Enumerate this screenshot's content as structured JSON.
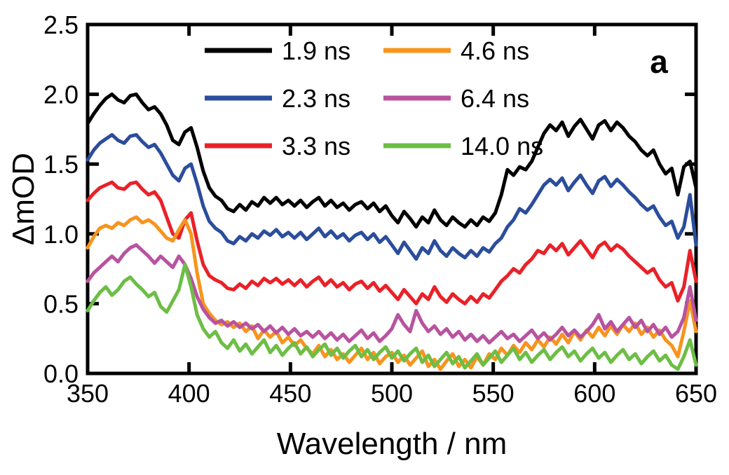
{
  "panel_label": "a",
  "axes": {
    "x": {
      "title": "Wavelength / nm",
      "range": [
        350,
        650
      ],
      "ticks": [
        350,
        400,
        450,
        500,
        550,
        600,
        650
      ]
    },
    "y": {
      "title": "ΔmOD",
      "range": [
        0,
        2.5
      ],
      "ticks": [
        "0.0",
        "0.5",
        "1.0",
        "1.5",
        "2.0",
        "2.5"
      ]
    }
  },
  "legend": {
    "position": "top-center",
    "columns": 2
  },
  "chart_data": {
    "type": "line",
    "title": "",
    "xlabel": "Wavelength / nm",
    "ylabel": "ΔmOD",
    "xlim": [
      350,
      650
    ],
    "ylim": [
      0,
      2.5
    ],
    "grid": false,
    "x": [
      350,
      353,
      356,
      359,
      362,
      365,
      368,
      371,
      374,
      377,
      380,
      383,
      386,
      389,
      392,
      395,
      398,
      401,
      404,
      407,
      410,
      413,
      416,
      419,
      422,
      425,
      428,
      431,
      434,
      437,
      440,
      443,
      446,
      449,
      452,
      455,
      458,
      461,
      464,
      467,
      470,
      473,
      476,
      479,
      482,
      485,
      488,
      491,
      494,
      497,
      500,
      503,
      506,
      509,
      512,
      515,
      518,
      521,
      524,
      527,
      530,
      533,
      536,
      539,
      542,
      545,
      548,
      551,
      554,
      557,
      560,
      563,
      566,
      569,
      572,
      575,
      578,
      581,
      584,
      587,
      590,
      593,
      596,
      599,
      602,
      605,
      608,
      611,
      614,
      617,
      620,
      623,
      626,
      629,
      632,
      635,
      638,
      641,
      644,
      647,
      650
    ],
    "series": [
      {
        "name": "1.9 ns",
        "color": "#000000",
        "values": [
          1.79,
          1.86,
          1.92,
          1.97,
          2.0,
          1.96,
          1.94,
          1.99,
          2.0,
          1.94,
          1.89,
          1.91,
          1.86,
          1.78,
          1.67,
          1.64,
          1.73,
          1.76,
          1.62,
          1.45,
          1.33,
          1.27,
          1.24,
          1.18,
          1.16,
          1.21,
          1.17,
          1.23,
          1.2,
          1.26,
          1.22,
          1.26,
          1.21,
          1.24,
          1.2,
          1.24,
          1.19,
          1.23,
          1.26,
          1.2,
          1.24,
          1.19,
          1.22,
          1.17,
          1.21,
          1.23,
          1.18,
          1.22,
          1.16,
          1.2,
          1.13,
          1.08,
          1.16,
          1.11,
          1.05,
          1.12,
          1.08,
          1.17,
          1.1,
          1.06,
          1.12,
          1.08,
          1.05,
          1.1,
          1.06,
          1.12,
          1.09,
          1.15,
          1.28,
          1.46,
          1.42,
          1.48,
          1.46,
          1.52,
          1.62,
          1.72,
          1.78,
          1.74,
          1.8,
          1.7,
          1.77,
          1.82,
          1.75,
          1.68,
          1.78,
          1.81,
          1.74,
          1.8,
          1.76,
          1.7,
          1.66,
          1.6,
          1.56,
          1.6,
          1.5,
          1.43,
          1.47,
          1.28,
          1.48,
          1.52,
          1.33
        ]
      },
      {
        "name": "2.3 ns",
        "color": "#2b4d9c",
        "values": [
          1.53,
          1.6,
          1.65,
          1.68,
          1.71,
          1.67,
          1.65,
          1.7,
          1.71,
          1.66,
          1.62,
          1.64,
          1.58,
          1.5,
          1.42,
          1.38,
          1.47,
          1.5,
          1.36,
          1.2,
          1.09,
          1.04,
          1.01,
          0.95,
          0.93,
          0.98,
          0.95,
          1.0,
          0.97,
          1.02,
          0.99,
          1.03,
          0.98,
          1.01,
          0.97,
          1.01,
          0.96,
          1.0,
          1.04,
          0.98,
          1.02,
          0.97,
          1.0,
          0.95,
          0.99,
          1.01,
          0.96,
          1.0,
          0.94,
          0.98,
          0.92,
          0.86,
          0.94,
          0.88,
          0.82,
          0.9,
          0.86,
          0.95,
          0.88,
          0.84,
          0.9,
          0.86,
          0.83,
          0.88,
          0.84,
          0.9,
          0.87,
          0.93,
          0.97,
          1.05,
          1.1,
          1.18,
          1.15,
          1.21,
          1.28,
          1.35,
          1.39,
          1.35,
          1.4,
          1.31,
          1.37,
          1.42,
          1.35,
          1.29,
          1.38,
          1.41,
          1.34,
          1.39,
          1.35,
          1.3,
          1.26,
          1.21,
          1.17,
          1.2,
          1.12,
          1.06,
          1.09,
          0.97,
          1.05,
          1.28,
          0.92
        ]
      },
      {
        "name": "3.3 ns",
        "color": "#ea2128",
        "values": [
          1.24,
          1.29,
          1.33,
          1.35,
          1.37,
          1.33,
          1.32,
          1.36,
          1.37,
          1.32,
          1.28,
          1.3,
          1.24,
          1.12,
          1.0,
          0.97,
          1.1,
          1.15,
          0.95,
          0.78,
          0.7,
          0.67,
          0.65,
          0.61,
          0.6,
          0.64,
          0.61,
          0.66,
          0.63,
          0.68,
          0.65,
          0.68,
          0.64,
          0.67,
          0.63,
          0.67,
          0.62,
          0.66,
          0.69,
          0.63,
          0.67,
          0.62,
          0.65,
          0.6,
          0.64,
          0.66,
          0.61,
          0.65,
          0.59,
          0.63,
          0.58,
          0.53,
          0.6,
          0.55,
          0.5,
          0.57,
          0.53,
          0.62,
          0.55,
          0.51,
          0.57,
          0.53,
          0.5,
          0.55,
          0.51,
          0.57,
          0.54,
          0.6,
          0.66,
          0.7,
          0.75,
          0.72,
          0.78,
          0.82,
          0.88,
          0.86,
          0.92,
          0.88,
          0.93,
          0.85,
          0.9,
          0.95,
          0.89,
          0.83,
          0.91,
          0.94,
          0.88,
          0.92,
          0.89,
          0.84,
          0.8,
          0.76,
          0.72,
          0.75,
          0.67,
          0.62,
          0.65,
          0.52,
          0.62,
          0.88,
          0.66
        ]
      },
      {
        "name": "4.6 ns",
        "color": "#f7941e",
        "values": [
          0.9,
          0.98,
          1.04,
          1.06,
          1.04,
          1.08,
          1.06,
          1.1,
          1.12,
          1.08,
          1.1,
          1.07,
          1.02,
          0.97,
          0.95,
          1.03,
          1.1,
          1.0,
          0.72,
          0.5,
          0.43,
          0.38,
          0.35,
          0.37,
          0.33,
          0.36,
          0.3,
          0.34,
          0.25,
          0.31,
          0.26,
          0.3,
          0.22,
          0.26,
          0.2,
          0.24,
          0.18,
          0.14,
          0.2,
          0.12,
          0.17,
          0.1,
          0.14,
          0.08,
          0.13,
          0.18,
          0.1,
          0.15,
          0.07,
          0.12,
          0.15,
          0.08,
          0.13,
          0.06,
          0.11,
          0.16,
          0.05,
          0.1,
          0.03,
          0.09,
          0.14,
          0.05,
          0.1,
          0.04,
          0.12,
          0.06,
          0.14,
          0.1,
          0.18,
          0.13,
          0.2,
          0.15,
          0.22,
          0.17,
          0.24,
          0.19,
          0.26,
          0.21,
          0.28,
          0.22,
          0.3,
          0.24,
          0.31,
          0.26,
          0.33,
          0.27,
          0.34,
          0.28,
          0.35,
          0.3,
          0.36,
          0.28,
          0.33,
          0.26,
          0.31,
          0.24,
          0.2,
          0.12,
          0.3,
          0.52,
          0.3
        ]
      },
      {
        "name": "6.4 ns",
        "color": "#b8539f",
        "values": [
          0.66,
          0.72,
          0.76,
          0.8,
          0.84,
          0.8,
          0.86,
          0.9,
          0.92,
          0.88,
          0.84,
          0.79,
          0.84,
          0.8,
          0.76,
          0.84,
          0.78,
          0.68,
          0.55,
          0.46,
          0.4,
          0.36,
          0.38,
          0.34,
          0.37,
          0.33,
          0.36,
          0.32,
          0.35,
          0.3,
          0.34,
          0.29,
          0.33,
          0.28,
          0.32,
          0.27,
          0.3,
          0.26,
          0.3,
          0.25,
          0.29,
          0.24,
          0.28,
          0.23,
          0.27,
          0.31,
          0.25,
          0.29,
          0.23,
          0.27,
          0.32,
          0.42,
          0.35,
          0.3,
          0.45,
          0.36,
          0.3,
          0.34,
          0.28,
          0.32,
          0.26,
          0.3,
          0.24,
          0.28,
          0.23,
          0.27,
          0.22,
          0.26,
          0.3,
          0.25,
          0.28,
          0.23,
          0.27,
          0.31,
          0.25,
          0.29,
          0.24,
          0.28,
          0.33,
          0.27,
          0.31,
          0.26,
          0.3,
          0.35,
          0.42,
          0.32,
          0.37,
          0.3,
          0.35,
          0.4,
          0.33,
          0.38,
          0.3,
          0.35,
          0.28,
          0.33,
          0.26,
          0.3,
          0.4,
          0.62,
          0.38
        ]
      },
      {
        "name": "14.0 ns",
        "color": "#6cbe45",
        "values": [
          0.45,
          0.52,
          0.58,
          0.62,
          0.56,
          0.6,
          0.66,
          0.69,
          0.64,
          0.6,
          0.55,
          0.58,
          0.48,
          0.44,
          0.52,
          0.6,
          0.78,
          0.62,
          0.42,
          0.32,
          0.26,
          0.3,
          0.22,
          0.18,
          0.24,
          0.16,
          0.21,
          0.14,
          0.19,
          0.24,
          0.15,
          0.2,
          0.13,
          0.18,
          0.22,
          0.14,
          0.19,
          0.12,
          0.17,
          0.21,
          0.13,
          0.18,
          0.11,
          0.16,
          0.2,
          0.12,
          0.17,
          0.1,
          0.15,
          0.19,
          0.11,
          0.16,
          0.09,
          0.14,
          0.18,
          0.08,
          0.13,
          0.05,
          0.1,
          0.15,
          0.07,
          0.12,
          0.04,
          0.09,
          0.14,
          0.06,
          0.11,
          0.16,
          0.08,
          0.13,
          0.18,
          0.1,
          0.15,
          0.08,
          0.13,
          0.17,
          0.1,
          0.15,
          0.19,
          0.12,
          0.16,
          0.09,
          0.14,
          0.18,
          0.11,
          0.15,
          0.08,
          0.13,
          0.17,
          0.1,
          0.14,
          0.07,
          0.12,
          0.16,
          0.09,
          0.13,
          0.06,
          0.03,
          0.12,
          0.24,
          0.06
        ]
      }
    ]
  }
}
